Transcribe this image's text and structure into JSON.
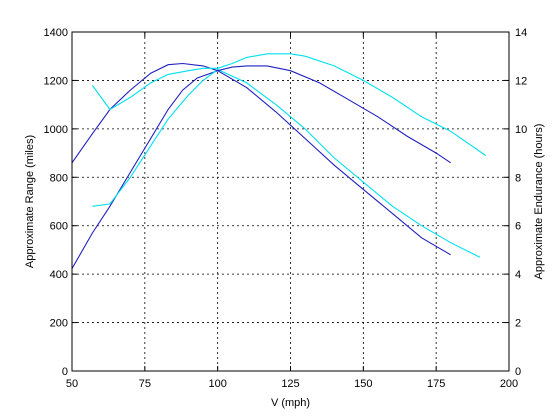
{
  "chart_data": {
    "type": "line",
    "xlabel": "V (mph)",
    "ylabel": "Approximate Range (miles)",
    "y2label": "Approximate Endurance (hours)",
    "xlim": [
      50,
      200
    ],
    "ylim": [
      0,
      1400
    ],
    "y2lim": [
      0,
      14
    ],
    "grid": true,
    "x_ticks": [
      "50",
      "75",
      "100",
      "125",
      "150",
      "175",
      "200"
    ],
    "y_ticks": [
      "0",
      "200",
      "400",
      "600",
      "800",
      "1000",
      "1200",
      "1400"
    ],
    "y2_ticks": [
      "0",
      "2",
      "4",
      "6",
      "8",
      "10",
      "12",
      "14"
    ],
    "colors": {
      "blue": "#2020c0",
      "cyan": "#00e0f0"
    },
    "series": [
      {
        "axis": "left",
        "color": "#2020c0",
        "x": [
          50,
          57,
          63,
          70,
          77,
          83,
          88,
          93,
          100,
          110,
          120,
          130,
          140,
          150,
          160,
          170,
          180
        ],
        "y": [
          423,
          570,
          680,
          820,
          960,
          1080,
          1160,
          1210,
          1240,
          1170,
          1070,
          960,
          850,
          750,
          650,
          550,
          480
        ]
      },
      {
        "axis": "left",
        "color": "#00e0f0",
        "x": [
          57,
          63,
          70,
          77,
          83,
          90,
          95,
          100,
          110,
          120,
          130,
          140,
          150,
          160,
          170,
          180,
          190
        ],
        "y": [
          680,
          690,
          800,
          930,
          1040,
          1140,
          1200,
          1245,
          1190,
          1100,
          1000,
          880,
          780,
          680,
          600,
          530,
          470
        ]
      },
      {
        "axis": "right",
        "color": "#2020c0",
        "x": [
          50,
          57,
          63,
          70,
          77,
          83,
          88,
          95,
          100,
          105,
          110,
          117,
          125,
          135,
          145,
          155,
          165,
          175,
          180
        ],
        "y": [
          8.6,
          9.8,
          10.8,
          11.6,
          12.3,
          12.65,
          12.7,
          12.6,
          12.4,
          12.55,
          12.6,
          12.6,
          12.4,
          11.9,
          11.2,
          10.5,
          9.7,
          9.0,
          8.6
        ]
      },
      {
        "axis": "right",
        "color": "#00e0f0",
        "x": [
          57,
          63,
          70,
          77,
          83,
          90,
          95,
          100,
          105,
          110,
          117,
          125,
          130,
          140,
          150,
          160,
          170,
          180,
          192
        ],
        "y": [
          11.8,
          10.8,
          11.3,
          11.9,
          12.25,
          12.4,
          12.5,
          12.5,
          12.7,
          12.95,
          13.1,
          13.1,
          13.0,
          12.6,
          12.0,
          11.3,
          10.5,
          9.9,
          8.9
        ]
      }
    ]
  }
}
